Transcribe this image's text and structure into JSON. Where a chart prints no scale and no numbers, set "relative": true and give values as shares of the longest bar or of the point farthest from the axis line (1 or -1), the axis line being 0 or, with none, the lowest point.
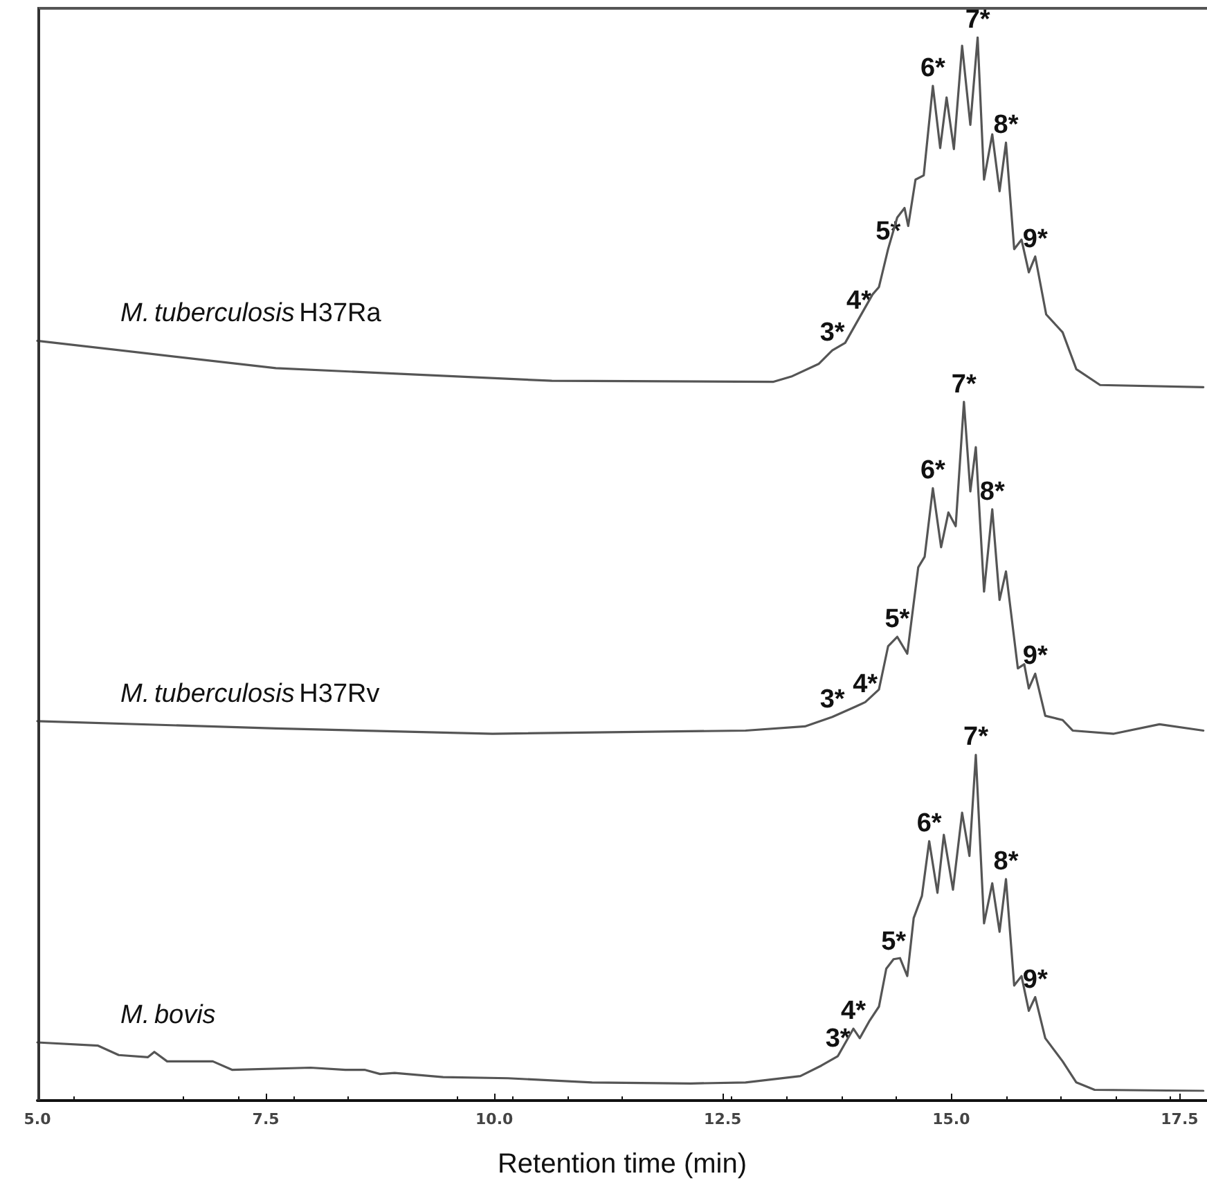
{
  "chart_data": {
    "type": "line",
    "relative": true,
    "xlabel": "Retention time (min)",
    "xlim": [
      5,
      17.8
    ],
    "xticks": [
      {
        "value": 5,
        "label": "5.0"
      },
      {
        "value": 7.5,
        "label": "7.5"
      },
      {
        "value": 10,
        "label": "10.0"
      },
      {
        "value": 12.5,
        "label": "12.5"
      },
      {
        "value": 15,
        "label": "15.0"
      },
      {
        "value": 17.5,
        "label": "17.5"
      }
    ],
    "tick_labels": "x",
    "marker": "none",
    "line_style": "solid",
    "series": [
      {
        "name": "M. tuberculosis H37Ra",
        "color": "#555555",
        "x": [
          5.0,
          7.61,
          10.63,
          13.05,
          13.25,
          13.55,
          13.7,
          13.84,
          13.99,
          14.14,
          14.21,
          14.31,
          14.41,
          14.49,
          14.53,
          14.61,
          14.7,
          14.8,
          14.88,
          14.95,
          15.03,
          15.12,
          15.21,
          15.29,
          15.36,
          15.45,
          15.53,
          15.6,
          15.69,
          15.77,
          15.85,
          15.92,
          16.04,
          16.22,
          16.37,
          16.63,
          17.76
        ],
        "values": [
          0.712,
          0.686,
          0.674,
          0.673,
          0.678,
          0.69,
          0.703,
          0.71,
          0.733,
          0.756,
          0.763,
          0.799,
          0.829,
          0.838,
          0.821,
          0.865,
          0.869,
          0.954,
          0.895,
          0.943,
          0.894,
          0.992,
          0.917,
          1.0,
          0.865,
          0.908,
          0.854,
          0.9,
          0.799,
          0.808,
          0.777,
          0.792,
          0.737,
          0.72,
          0.685,
          0.67,
          0.668
        ]
      },
      {
        "name": "M. tuberculosis H37Rv",
        "color": "#555555",
        "x": [
          5.0,
          7.61,
          9.98,
          12.75,
          13.4,
          13.7,
          13.96,
          14.06,
          14.21,
          14.31,
          14.41,
          14.52,
          14.64,
          14.71,
          14.8,
          14.89,
          14.97,
          15.05,
          15.14,
          15.21,
          15.27,
          15.36,
          15.45,
          15.53,
          15.6,
          15.73,
          15.8,
          15.85,
          15.92,
          16.03,
          16.22,
          16.33,
          16.78,
          17.28,
          17.76
        ],
        "values": [
          0.351,
          0.344,
          0.339,
          0.342,
          0.346,
          0.355,
          0.365,
          0.369,
          0.381,
          0.422,
          0.431,
          0.415,
          0.497,
          0.507,
          0.572,
          0.516,
          0.549,
          0.536,
          0.654,
          0.569,
          0.611,
          0.474,
          0.552,
          0.466,
          0.493,
          0.401,
          0.405,
          0.382,
          0.396,
          0.356,
          0.352,
          0.342,
          0.339,
          0.348,
          0.342
        ]
      },
      {
        "name": "M. bovis",
        "color": "#555555",
        "x": [
          5.0,
          5.66,
          5.89,
          6.21,
          6.28,
          6.42,
          6.92,
          7.13,
          7.99,
          8.37,
          8.58,
          8.75,
          8.91,
          9.44,
          10.15,
          11.07,
          12.15,
          12.75,
          13.35,
          13.58,
          13.76,
          13.93,
          14.0,
          14.11,
          14.21,
          14.29,
          14.37,
          14.44,
          14.52,
          14.59,
          14.68,
          14.76,
          14.85,
          14.92,
          15.02,
          15.12,
          15.2,
          15.27,
          15.36,
          15.45,
          15.53,
          15.6,
          15.69,
          15.77,
          15.85,
          15.92,
          16.03,
          16.22,
          16.37,
          16.57,
          17.76
        ],
        "values": [
          0.046,
          0.043,
          0.034,
          0.032,
          0.037,
          0.028,
          0.028,
          0.02,
          0.022,
          0.02,
          0.02,
          0.016,
          0.017,
          0.013,
          0.012,
          0.008,
          0.007,
          0.008,
          0.014,
          0.024,
          0.033,
          0.059,
          0.05,
          0.067,
          0.08,
          0.116,
          0.125,
          0.126,
          0.109,
          0.164,
          0.185,
          0.237,
          0.188,
          0.243,
          0.191,
          0.264,
          0.223,
          0.319,
          0.159,
          0.197,
          0.151,
          0.201,
          0.1,
          0.109,
          0.076,
          0.089,
          0.05,
          0.028,
          0.008,
          0.001,
          0.0
        ]
      }
    ],
    "annotations": [
      {
        "text": "3*",
        "x": 13.7,
        "y": 0.703
      },
      {
        "text": "4*",
        "x": 13.99,
        "y": 0.733
      },
      {
        "text": "5*",
        "x": 14.31,
        "y": 0.799
      },
      {
        "text": "6*",
        "x": 14.8,
        "y": 0.954
      },
      {
        "text": "7*",
        "x": 15.29,
        "y": 1.0
      },
      {
        "text": "8*",
        "x": 15.6,
        "y": 0.9
      },
      {
        "text": "9*",
        "x": 15.92,
        "y": 0.792
      },
      {
        "text": "3*",
        "x": 13.7,
        "y": 0.355
      },
      {
        "text": "4*",
        "x": 14.06,
        "y": 0.369
      },
      {
        "text": "5*",
        "x": 14.41,
        "y": 0.431
      },
      {
        "text": "6*",
        "x": 14.8,
        "y": 0.572
      },
      {
        "text": "7*",
        "x": 15.14,
        "y": 0.654
      },
      {
        "text": "8*",
        "x": 15.45,
        "y": 0.552
      },
      {
        "text": "9*",
        "x": 15.92,
        "y": 0.396
      },
      {
        "text": "3*",
        "x": 13.76,
        "y": 0.033
      },
      {
        "text": "4*",
        "x": 13.93,
        "y": 0.059
      },
      {
        "text": "5*",
        "x": 14.37,
        "y": 0.125
      },
      {
        "text": "6*",
        "x": 14.76,
        "y": 0.237
      },
      {
        "text": "7*",
        "x": 15.27,
        "y": 0.319
      },
      {
        "text": "8*",
        "x": 15.6,
        "y": 0.201
      },
      {
        "text": "9*",
        "x": 15.92,
        "y": 0.089
      }
    ]
  }
}
